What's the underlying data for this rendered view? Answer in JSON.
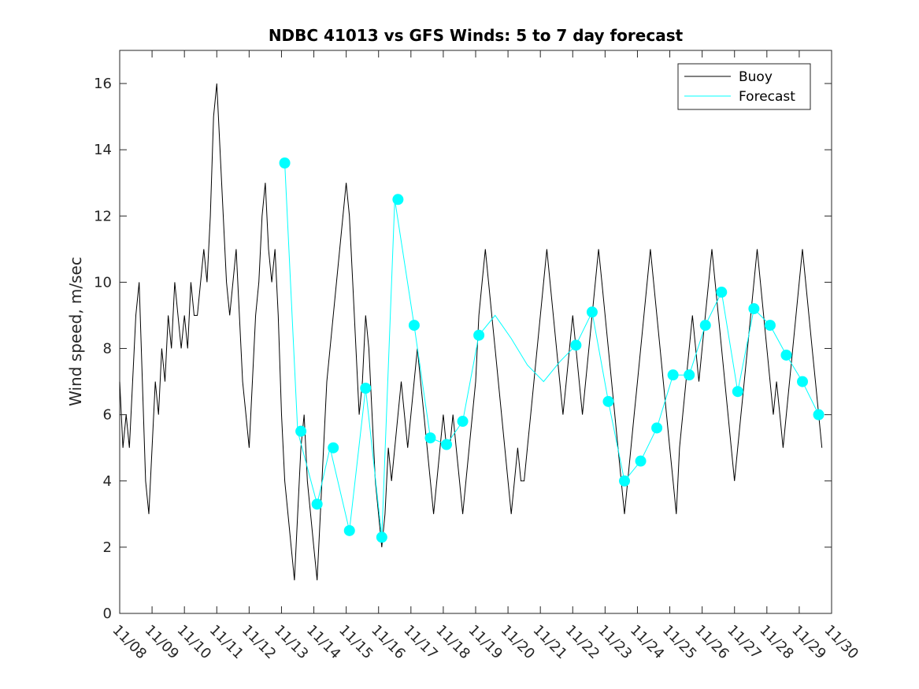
{
  "chart_data": {
    "type": "line",
    "title": "NDBC 41013 vs GFS Winds: 5 to 7 day forecast",
    "xlabel": "",
    "ylabel": "Wind speed, m/sec",
    "xlim": [
      "11/08",
      "11/30"
    ],
    "ylim": [
      0,
      17
    ],
    "x_tick_labels": [
      "11/08",
      "11/09",
      "11/10",
      "11/11",
      "11/12",
      "11/13",
      "11/14",
      "11/15",
      "11/16",
      "11/17",
      "11/18",
      "11/19",
      "11/20",
      "11/21",
      "11/22",
      "11/23",
      "11/24",
      "11/25",
      "11/26",
      "11/27",
      "11/28",
      "11/29",
      "11/30"
    ],
    "y_ticks": [
      0,
      2,
      4,
      6,
      8,
      10,
      12,
      14,
      16
    ],
    "grid": false,
    "legend_position": "top-right",
    "colors": {
      "buoy": "#000000",
      "forecast": "#00ffff"
    },
    "series": [
      {
        "name": "Buoy",
        "style": "line",
        "x_day_offsets": [
          0.0,
          0.1,
          0.2,
          0.3,
          0.4,
          0.5,
          0.6,
          0.7,
          0.8,
          0.9,
          1.0,
          1.1,
          1.2,
          1.3,
          1.4,
          1.5,
          1.6,
          1.7,
          1.8,
          1.9,
          2.0,
          2.1,
          2.2,
          2.3,
          2.4,
          2.5,
          2.6,
          2.7,
          2.8,
          2.9,
          3.0,
          3.1,
          3.2,
          3.3,
          3.4,
          3.5,
          3.6,
          3.7,
          3.8,
          3.9,
          4.0,
          4.1,
          4.2,
          4.3,
          4.4,
          4.5,
          4.6,
          4.7,
          4.8,
          4.9,
          5.0,
          5.1,
          5.2,
          5.3,
          5.4,
          5.5,
          5.6,
          5.7,
          5.8,
          5.9,
          6.0,
          6.1,
          6.2,
          6.3,
          6.4,
          6.5,
          6.6,
          6.7,
          6.8,
          6.9,
          7.0,
          7.1,
          7.2,
          7.3,
          7.4,
          7.5,
          7.6,
          7.7,
          7.8,
          7.9,
          8.0,
          8.1,
          8.2,
          8.3,
          8.4,
          8.5,
          8.6,
          8.7,
          8.8,
          8.9,
          9.0,
          9.1,
          9.2,
          9.3,
          9.4,
          9.5,
          9.6,
          9.7,
          9.8,
          9.9,
          10.0,
          10.1,
          10.2,
          10.3,
          10.4,
          10.5,
          10.6,
          10.7,
          10.8,
          10.9,
          11.0,
          11.1,
          11.2,
          11.3,
          11.4,
          11.5,
          11.6,
          11.7,
          11.8,
          11.9,
          12.0,
          12.1,
          12.2,
          12.3,
          12.4,
          12.5,
          12.6,
          12.7,
          12.8,
          12.9,
          13.0,
          13.1,
          13.2,
          13.3,
          13.4,
          13.5,
          13.6,
          13.7,
          13.8,
          13.9,
          14.0,
          14.1,
          14.2,
          14.3,
          14.4,
          14.5,
          14.6,
          14.7,
          14.8,
          14.9,
          15.0,
          15.1,
          15.2,
          15.3,
          15.4,
          15.5,
          15.6,
          15.7,
          15.8,
          15.9,
          16.0,
          16.1,
          16.2,
          16.3,
          16.4,
          16.5,
          16.6,
          16.7,
          16.8,
          16.9,
          17.0,
          17.1,
          17.2,
          17.3,
          17.4,
          17.5,
          17.6,
          17.7,
          17.8,
          17.9,
          18.0,
          18.1,
          18.2,
          18.3,
          18.4,
          18.5,
          18.6,
          18.7,
          18.8,
          18.9,
          19.0,
          19.1,
          19.2,
          19.3,
          19.4,
          19.5,
          19.6,
          19.7,
          19.8,
          19.9,
          20.0,
          20.1,
          20.2,
          20.3,
          20.4,
          20.5,
          20.6,
          20.7,
          20.8,
          20.9,
          21.0,
          21.1,
          21.2,
          21.3,
          21.4,
          21.5,
          21.6,
          21.7,
          21.8,
          21.9,
          22.0
        ],
        "values": [
          7,
          5,
          6,
          5,
          7,
          9,
          10,
          7,
          4,
          3,
          5,
          7,
          6,
          8,
          7,
          9,
          8,
          10,
          9,
          8,
          9,
          8,
          10,
          9,
          9,
          10,
          11,
          10,
          12,
          15,
          16,
          14,
          12,
          10,
          9,
          10,
          11,
          9,
          7,
          6,
          5,
          7,
          9,
          10,
          12,
          13,
          11,
          10,
          11,
          9,
          6,
          4,
          3,
          2,
          1,
          3,
          5,
          6,
          4,
          3,
          2,
          1,
          3,
          5,
          7,
          8,
          9,
          10,
          11,
          12,
          13,
          12,
          10,
          8,
          6,
          7,
          9,
          8,
          6,
          4,
          3,
          2,
          3,
          5,
          4,
          5,
          6,
          7,
          6,
          5,
          6,
          7,
          8,
          7,
          6,
          5,
          4,
          3,
          4,
          5,
          6,
          5,
          5,
          6,
          5,
          4,
          3,
          4,
          5,
          6,
          7,
          9,
          10,
          11,
          10,
          9,
          8,
          7,
          6,
          5,
          4,
          3,
          4,
          5,
          4,
          4,
          5,
          6,
          7,
          8,
          9,
          10,
          11,
          10,
          9,
          8,
          7,
          6,
          7,
          8,
          9,
          8,
          7,
          6,
          7,
          8,
          9,
          10,
          11,
          10,
          9,
          8,
          7,
          6,
          5,
          4,
          3,
          4,
          5,
          6,
          7,
          8,
          9,
          10,
          11,
          10,
          9,
          8,
          7,
          6,
          5,
          4,
          3,
          5,
          6,
          7,
          8,
          9,
          8,
          7,
          8,
          9,
          10,
          11,
          10,
          9,
          8,
          7,
          6,
          5,
          4,
          5,
          6,
          7,
          8,
          9,
          10,
          11,
          10,
          9,
          8,
          7,
          6,
          7,
          6,
          5,
          6,
          7,
          8,
          9,
          10,
          11,
          10,
          9,
          8,
          7,
          6,
          5
        ]
      },
      {
        "name": "Forecast",
        "style": "line",
        "x_day_offsets": [
          5.1,
          5.5,
          6.1,
          6.5,
          7.1,
          7.6,
          8.1,
          8.5,
          9.1,
          9.6,
          10.1,
          10.6,
          11.1,
          11.6,
          12.1,
          12.6,
          13.1,
          13.6,
          14.1,
          14.6,
          15.1,
          15.6,
          16.1,
          16.6,
          17.1,
          17.6,
          18.1,
          18.6,
          19.1,
          19.6,
          20.1,
          20.6,
          21.1,
          21.6
        ],
        "values": [
          13.6,
          5.5,
          3.3,
          5.0,
          2.5,
          6.8,
          2.3,
          12.5,
          8.7,
          5.3,
          5.1,
          5.8,
          8.4,
          9.0,
          8.3,
          7.5,
          7.0,
          7.6,
          8.1,
          9.1,
          6.4,
          4.0,
          4.6,
          5.6,
          7.2,
          7.2,
          8.7,
          9.7,
          6.7,
          9.2,
          8.7,
          7.8,
          7.0,
          6.0
        ]
      },
      {
        "name": "",
        "style": "markers",
        "x_day_offsets": [
          5.1,
          5.6,
          6.1,
          6.6,
          7.1,
          7.6,
          8.1,
          8.6,
          9.1,
          9.6,
          10.1,
          10.6,
          11.1,
          14.1,
          14.6,
          15.1,
          15.6,
          16.1,
          16.6,
          17.1,
          17.6,
          18.1,
          18.6,
          19.1,
          19.6,
          20.1,
          20.6,
          21.1,
          21.6
        ],
        "values": [
          13.6,
          5.5,
          3.3,
          5.0,
          2.5,
          6.8,
          2.3,
          12.5,
          8.7,
          5.3,
          5.1,
          5.8,
          8.4,
          8.1,
          9.1,
          6.4,
          4.0,
          4.6,
          5.6,
          7.2,
          7.2,
          8.7,
          9.7,
          6.7,
          9.2,
          8.7,
          7.8,
          7.0,
          6.0
        ]
      }
    ]
  }
}
